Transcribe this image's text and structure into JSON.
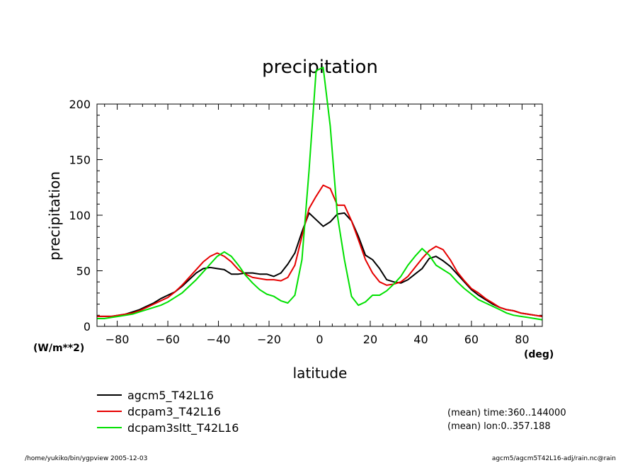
{
  "chart_data": {
    "type": "line",
    "title": "precipitation",
    "xlabel": "latitude",
    "ylabel": "precipitation",
    "x_unit": "(deg)",
    "y_unit": "(W/m**2)",
    "xlim": [
      -88,
      88
    ],
    "ylim": [
      0,
      200
    ],
    "x_ticks": [
      -80,
      -60,
      -40,
      -20,
      0,
      20,
      40,
      60,
      80
    ],
    "x_tick_labels": [
      "−80",
      "−60",
      "−40",
      "−20",
      "0",
      "20",
      "40",
      "60",
      "80"
    ],
    "y_ticks": [
      0,
      50,
      100,
      150,
      200
    ],
    "y_tick_labels": [
      "0",
      "50",
      "100",
      "150",
      "200"
    ],
    "grid": false,
    "legend_position": "bottom-left",
    "x": [
      -87.9,
      -85.1,
      -82.3,
      -79.5,
      -76.7,
      -73.9,
      -71.2,
      -68.4,
      -65.6,
      -62.8,
      -60.0,
      -57.2,
      -54.4,
      -51.6,
      -48.8,
      -46.0,
      -43.3,
      -40.5,
      -37.7,
      -34.9,
      -32.1,
      -29.3,
      -26.5,
      -23.7,
      -20.9,
      -18.1,
      -15.3,
      -12.6,
      -9.8,
      -7.0,
      -4.2,
      -1.4,
      1.4,
      4.2,
      7.0,
      9.8,
      12.6,
      15.3,
      18.1,
      20.9,
      23.7,
      26.5,
      29.3,
      32.1,
      34.9,
      37.7,
      40.5,
      43.3,
      46.0,
      48.8,
      51.6,
      54.4,
      57.2,
      60.0,
      62.8,
      65.6,
      68.4,
      71.2,
      73.9,
      76.7,
      79.5,
      82.3,
      85.1,
      87.9
    ],
    "series": [
      {
        "name": "agcm5_T42L16",
        "color": "#000000",
        "values": [
          9,
          9,
          9,
          10,
          11,
          13,
          15,
          18,
          21,
          25,
          28,
          31,
          36,
          42,
          48,
          52,
          53,
          52,
          51,
          47,
          47,
          48,
          48,
          47,
          47,
          45,
          48,
          56,
          66,
          85,
          102,
          96,
          90,
          94,
          101,
          102,
          95,
          81,
          64,
          60,
          52,
          42,
          40,
          39,
          42,
          47,
          52,
          61,
          63,
          59,
          54,
          47,
          40,
          33,
          28,
          24,
          20,
          17,
          15,
          14,
          12,
          11,
          10,
          9
        ]
      },
      {
        "name": "dcpam3_T42L16",
        "color": "#e60000",
        "values": [
          9,
          9,
          9,
          10,
          11,
          12,
          14,
          17,
          20,
          23,
          26,
          31,
          37,
          44,
          51,
          58,
          63,
          66,
          63,
          58,
          51,
          47,
          44,
          43,
          42,
          42,
          41,
          44,
          55,
          81,
          106,
          117,
          127,
          124,
          109,
          109,
          95,
          78,
          60,
          48,
          40,
          37,
          38,
          40,
          45,
          53,
          61,
          68,
          72,
          69,
          60,
          49,
          41,
          34,
          30,
          25,
          21,
          17,
          15,
          14,
          12,
          11,
          10,
          9
        ]
      },
      {
        "name": "dcpam3sltt_T42L16",
        "color": "#00e000",
        "values": [
          7,
          7,
          8,
          9,
          10,
          11,
          13,
          15,
          17,
          19,
          22,
          26,
          30,
          36,
          42,
          49,
          56,
          63,
          67,
          63,
          55,
          46,
          39,
          33,
          29,
          27,
          23,
          21,
          28,
          60,
          140,
          230,
          233,
          180,
          100,
          60,
          27,
          19,
          22,
          28,
          28,
          32,
          38,
          45,
          55,
          63,
          70,
          64,
          55,
          51,
          47,
          40,
          34,
          29,
          24,
          21,
          18,
          15,
          12,
          10,
          9,
          8,
          7,
          6
        ]
      }
    ]
  },
  "annotations": {
    "mean_time": "(mean) time:360..144000",
    "mean_lon": "(mean) lon:0..357.188"
  },
  "footer": {
    "left": "/home/yukiko/bin/ygpview  2005-12-03",
    "right": "agcm5/agcm5T42L16-adj/rain.nc@rain"
  }
}
